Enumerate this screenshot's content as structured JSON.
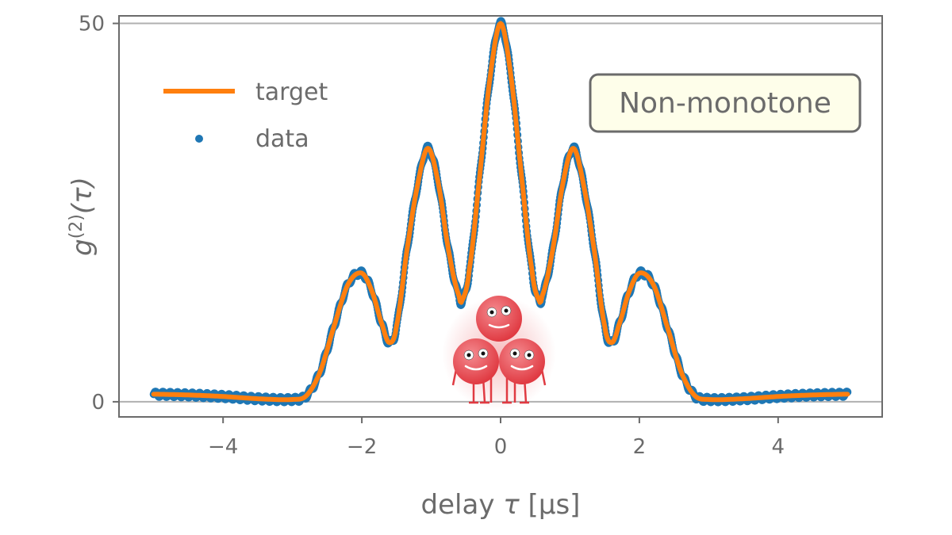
{
  "chart_data": {
    "type": "line",
    "xlabel_prefix": "delay ",
    "xlabel_symbol": "τ",
    "xlabel_unit": " [μs]",
    "ylabel_main": "g",
    "ylabel_sup": "(2)",
    "ylabel_arg": "(τ)",
    "xlim": [
      -5.5,
      5.5
    ],
    "ylim": [
      -2,
      51
    ],
    "xticks": [
      -4,
      -2,
      0,
      2,
      4
    ],
    "xtick_labels": [
      "−4",
      "−2",
      "0",
      "2",
      "4"
    ],
    "yticks": [
      0,
      50
    ],
    "ytick_labels": [
      "0",
      "50"
    ],
    "grid": "horizontal",
    "legend_placement": "upper-left",
    "annotation": "Non-monotone",
    "series": [
      {
        "name": "target",
        "style": "line",
        "color": "#ff7f0e",
        "x": [
          -5.0,
          -4.5,
          -4.0,
          -3.5,
          -3.0,
          -2.8,
          -2.6,
          -2.4,
          -2.2,
          -2.0,
          -1.85,
          -1.7,
          -1.6,
          -1.5,
          -1.35,
          -1.2,
          -1.05,
          -0.9,
          -0.75,
          -0.6,
          -0.55,
          -0.45,
          -0.3,
          -0.15,
          0.0,
          0.15,
          0.3,
          0.45,
          0.55,
          0.6,
          0.75,
          0.9,
          1.05,
          1.2,
          1.35,
          1.5,
          1.6,
          1.7,
          1.85,
          2.0,
          2.2,
          2.4,
          2.6,
          2.8,
          3.0,
          3.5,
          4.0,
          4.5,
          5.0
        ],
        "y": [
          1.0,
          0.9,
          0.7,
          0.4,
          0.3,
          0.8,
          4.0,
          10.0,
          15.5,
          17.0,
          14.5,
          10.0,
          7.8,
          10.0,
          20.0,
          28.5,
          33.5,
          29.0,
          20.0,
          14.0,
          13.5,
          17.5,
          30.0,
          43.0,
          50.0,
          43.0,
          30.0,
          17.5,
          13.5,
          14.0,
          20.0,
          29.0,
          33.5,
          28.5,
          20.0,
          10.0,
          7.8,
          10.0,
          14.5,
          17.0,
          15.5,
          10.0,
          4.0,
          0.8,
          0.3,
          0.4,
          0.7,
          0.9,
          1.0
        ]
      },
      {
        "name": "data",
        "style": "points",
        "color": "#1f77b4"
      }
    ]
  },
  "colors": {
    "axis": "#6b6b6b",
    "grid": "#b0b0b0",
    "annotation_fill": "#fefeea",
    "mascot": "#e8474e"
  },
  "decoration": "mascot-icon"
}
